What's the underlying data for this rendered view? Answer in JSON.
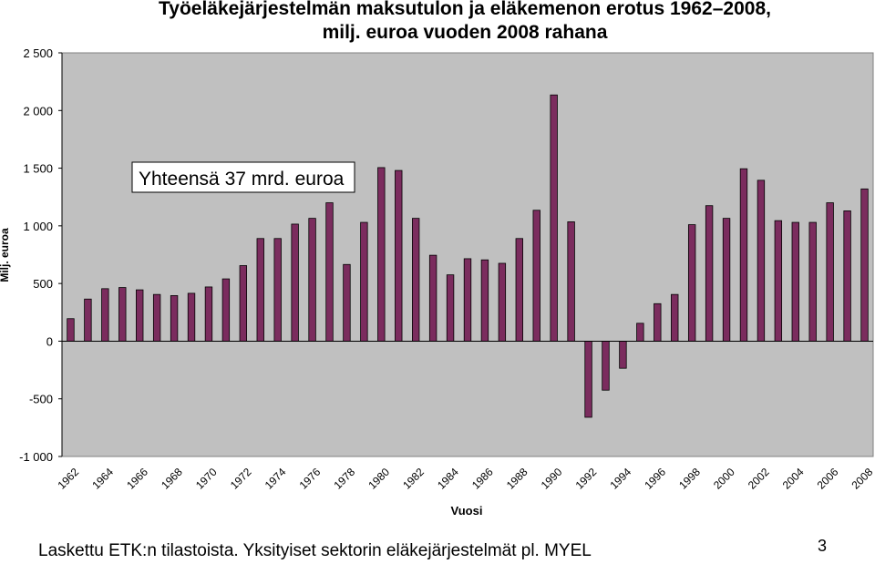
{
  "chart_data": {
    "type": "bar",
    "title": "Työeläkejärjestelmän maksutulon ja eläkemenon erotus 1962–2008,",
    "subtitle": "milj. euroa vuoden 2008 rahana",
    "xlabel": "Vuosi",
    "ylabel": "Milj. euroa",
    "ylim": [
      -1000,
      2500
    ],
    "yticks": [
      -1000,
      -500,
      0,
      500,
      1000,
      1500,
      2000,
      2500
    ],
    "ytick_labels": [
      "-1 000",
      "-500",
      "0",
      "500",
      "1 000",
      "1 500",
      "2 000",
      "2 500"
    ],
    "xtick_labels": [
      "1962",
      "1964",
      "1966",
      "1968",
      "1970",
      "1972",
      "1974",
      "1976",
      "1978",
      "1980",
      "1982",
      "1984",
      "1986",
      "1988",
      "1990",
      "1992",
      "1994",
      "1996",
      "1998",
      "2000",
      "2002",
      "2004",
      "2006",
      "2008"
    ],
    "grid": false,
    "plot_background": "#c0c0c0",
    "bar_color": "#7b2c5e",
    "categories": [
      "1962",
      "1963",
      "1964",
      "1965",
      "1966",
      "1967",
      "1968",
      "1969",
      "1970",
      "1971",
      "1972",
      "1973",
      "1974",
      "1975",
      "1976",
      "1977",
      "1978",
      "1979",
      "1980",
      "1981",
      "1982",
      "1983",
      "1984",
      "1985",
      "1986",
      "1987",
      "1988",
      "1989",
      "1990",
      "1991",
      "1992",
      "1993",
      "1994",
      "1995",
      "1996",
      "1997",
      "1998",
      "1999",
      "2000",
      "2001",
      "2002",
      "2003",
      "2004",
      "2005",
      "2006",
      "2007",
      "2008"
    ],
    "values": [
      195,
      365,
      455,
      465,
      445,
      405,
      395,
      415,
      470,
      540,
      655,
      890,
      890,
      1015,
      1065,
      1200,
      665,
      1030,
      1505,
      1480,
      1065,
      745,
      575,
      715,
      705,
      675,
      890,
      1135,
      2135,
      1035,
      -660,
      -425,
      -235,
      155,
      325,
      405,
      1010,
      1175,
      1065,
      1495,
      1395,
      1045,
      1030,
      1030,
      1200,
      1130,
      1320
    ],
    "annotation": "Yhteensä 37 mrd. euroa"
  },
  "footnote": "Laskettu ETK:n tilastoista. Yksityiset sektorin eläkejärjestelmät pl. MYEL",
  "page_number": "3"
}
